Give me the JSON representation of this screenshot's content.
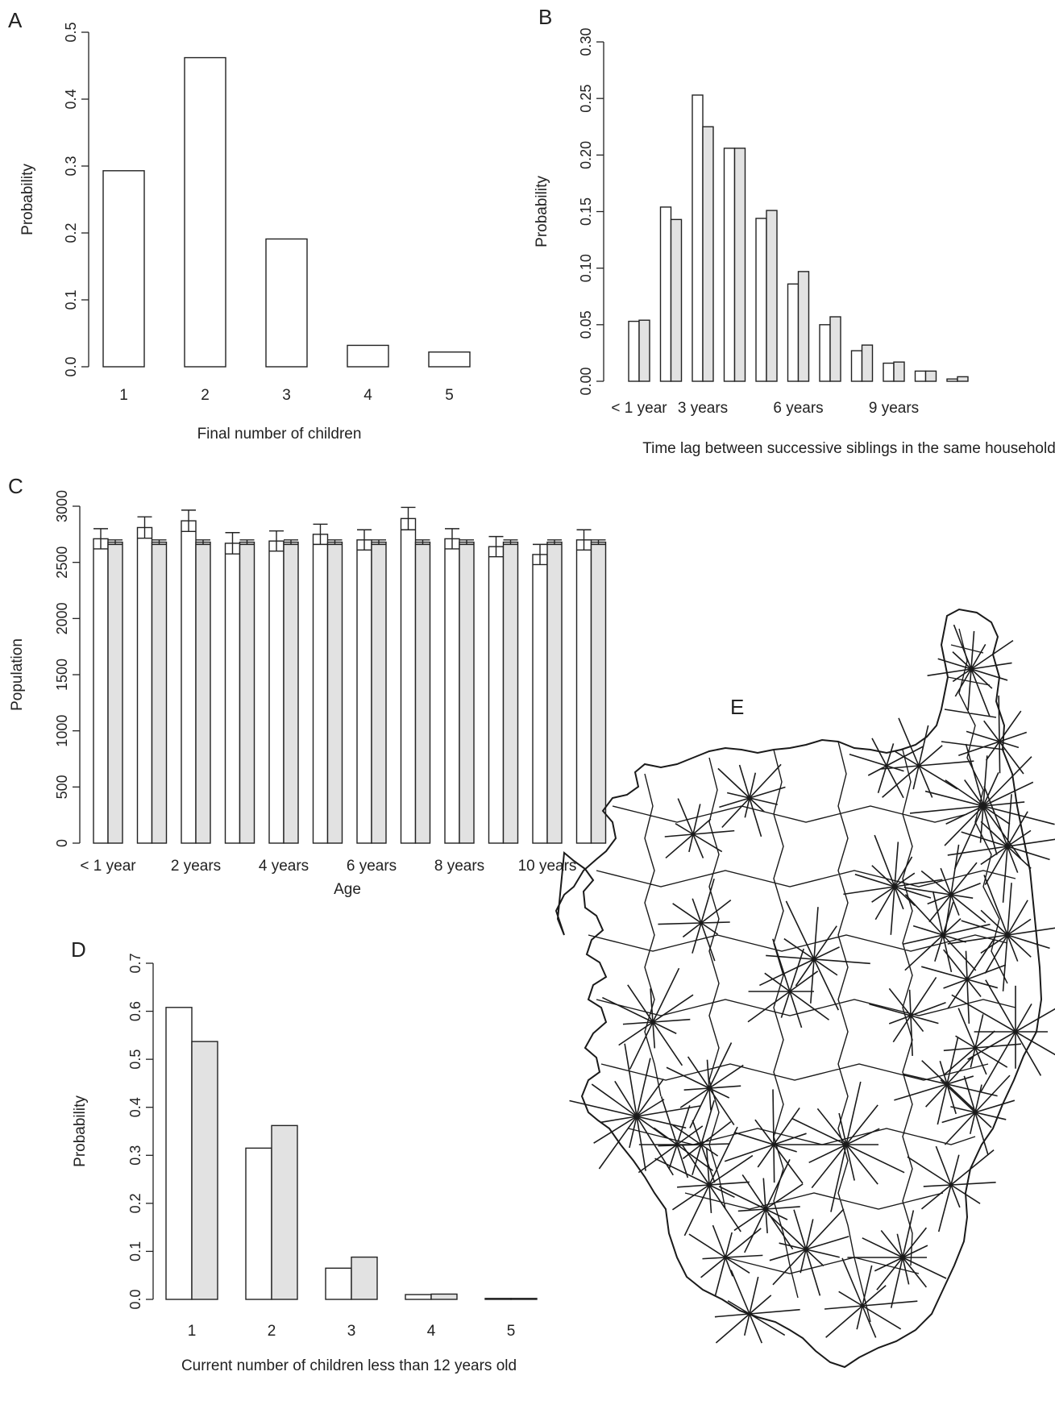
{
  "chart_data": [
    {
      "panel": "A",
      "type": "bar",
      "categories": [
        "1",
        "2",
        "3",
        "4",
        "5"
      ],
      "series": [
        {
          "values": [
            0.293,
            0.462,
            0.191,
            0.032,
            0.022
          ],
          "color": "#ffffff"
        }
      ],
      "yticks": [
        "0.0",
        "0.1",
        "0.2",
        "0.3",
        "0.4",
        "0.5"
      ],
      "ylim": [
        0,
        0.5
      ],
      "xlabel": "Final number of children",
      "ylabel": "Probability",
      "grid": false
    },
    {
      "panel": "B",
      "type": "bar",
      "categories": [
        "< 1 year",
        "",
        "3 years",
        "",
        "",
        "6 years",
        "",
        "",
        "9 years",
        "",
        ""
      ],
      "series": [
        {
          "values": [
            0.053,
            0.154,
            0.253,
            0.206,
            0.144,
            0.086,
            0.05,
            0.027,
            0.016,
            0.009,
            0.002
          ],
          "color": "#ffffff"
        },
        {
          "values": [
            0.054,
            0.143,
            0.225,
            0.206,
            0.151,
            0.097,
            0.057,
            0.032,
            0.017,
            0.009,
            0.004
          ],
          "color": "#e2e2e2"
        }
      ],
      "yticks": [
        "0.00",
        "0.05",
        "0.10",
        "0.15",
        "0.20",
        "0.25",
        "0.30"
      ],
      "ylim": [
        0,
        0.3
      ],
      "xlabel": "Time lag between successive siblings in the same household",
      "ylabel": "Probability",
      "grid": false
    },
    {
      "panel": "C",
      "type": "bar",
      "categories": [
        "< 1 year",
        "",
        "2 years",
        "",
        "4 years",
        "",
        "6 years",
        "",
        "8 years",
        "",
        "10 years",
        ""
      ],
      "series": [
        {
          "values": [
            2710,
            2810,
            2870,
            2670,
            2690,
            2750,
            2700,
            2890,
            2710,
            2640,
            2570,
            2700
          ],
          "errors": [
            90,
            95,
            95,
            95,
            90,
            90,
            90,
            100,
            90,
            90,
            90,
            90
          ],
          "color": "#ffffff"
        },
        {
          "values": [
            2680,
            2680,
            2680,
            2680,
            2680,
            2680,
            2680,
            2680,
            2680,
            2680,
            2680,
            2680
          ],
          "errors": [
            20,
            20,
            20,
            20,
            20,
            20,
            20,
            20,
            20,
            20,
            20,
            20
          ],
          "color": "#e2e2e2"
        }
      ],
      "yticks": [
        "0",
        "500",
        "1000",
        "1500",
        "2000",
        "2500",
        "3000"
      ],
      "ylim": [
        0,
        3000
      ],
      "xlabel": "Age",
      "ylabel": "Population",
      "grid": false
    },
    {
      "panel": "D",
      "type": "bar",
      "categories": [
        "1",
        "2",
        "3",
        "4",
        "5"
      ],
      "series": [
        {
          "values": [
            0.608,
            0.315,
            0.065,
            0.01,
            0.002
          ],
          "color": "#ffffff"
        },
        {
          "values": [
            0.537,
            0.362,
            0.088,
            0.011,
            0.002
          ],
          "color": "#e2e2e2"
        }
      ],
      "yticks": [
        "0.0",
        "0.1",
        "0.2",
        "0.3",
        "0.4",
        "0.5",
        "0.6",
        "0.7"
      ],
      "ylim": [
        0,
        0.7
      ],
      "xlabel": "Current number of children less than 12 years old",
      "ylabel": "Probability",
      "grid": false
    }
  ],
  "panel_labels": {
    "a": "A",
    "b": "B",
    "c": "C",
    "d": "D",
    "e": "E"
  },
  "map": {
    "description_label": "E",
    "stroke_color": "#1a1a1a"
  }
}
